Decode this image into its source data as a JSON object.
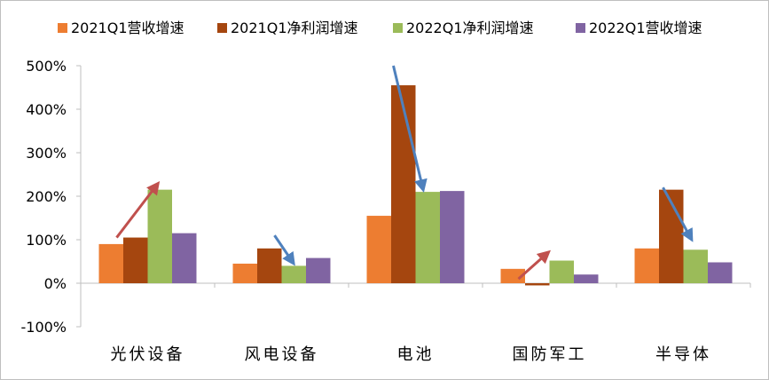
{
  "chart_data": {
    "type": "bar",
    "categories": [
      "光伏设备",
      "风电设备",
      "电池",
      "国防军工",
      "半导体"
    ],
    "series": [
      {
        "name": "2021Q1营收增速",
        "color": "#ED7D31",
        "values": [
          90,
          45,
          155,
          33,
          80
        ]
      },
      {
        "name": "2021Q1净利润增速",
        "color": "#A5460F",
        "values": [
          105,
          80,
          455,
          -5,
          215
        ]
      },
      {
        "name": "2022Q1净利润增速",
        "color": "#9BBB59",
        "values": [
          215,
          40,
          210,
          52,
          77
        ]
      },
      {
        "name": "2022Q1营收增速",
        "color": "#8064A2",
        "values": [
          115,
          58,
          212,
          20,
          48
        ]
      }
    ],
    "ylim": [
      -100,
      500
    ],
    "yticks": [
      -100,
      0,
      100,
      200,
      300,
      400,
      500
    ],
    "ytick_labels": [
      "-100%",
      "0%",
      "100%",
      "200%",
      "300%",
      "400%",
      "500%"
    ],
    "grid": false,
    "legend_position": "top",
    "annotations": [
      {
        "type": "arrow",
        "color": "#C0504D",
        "from": {
          "category": "光伏设备",
          "value": 105
        },
        "to": {
          "category": "光伏设备",
          "value": 225
        }
      },
      {
        "type": "arrow",
        "color": "#4F81BD",
        "from": {
          "category": "风电设备",
          "value": 110
        },
        "to": {
          "category": "风电设备",
          "value": 50
        }
      },
      {
        "type": "arrow",
        "color": "#4F81BD",
        "from": {
          "category": "电池",
          "value": 500
        },
        "to": {
          "category": "电池",
          "value": 220
        }
      },
      {
        "type": "arrow",
        "color": "#C0504D",
        "from": {
          "category": "国防军工",
          "value": 10
        },
        "to": {
          "category": "国防军工",
          "value": 68
        }
      },
      {
        "type": "arrow",
        "color": "#4F81BD",
        "from": {
          "category": "半导体",
          "value": 220
        },
        "to": {
          "category": "半导体",
          "value": 105
        }
      }
    ]
  }
}
